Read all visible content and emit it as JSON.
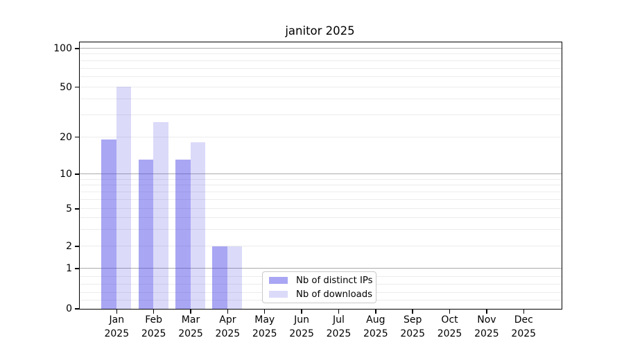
{
  "chart_data": {
    "type": "bar",
    "title": "janitor 2025",
    "categories": [
      "Jan 2025",
      "Feb 2025",
      "Mar 2025",
      "Apr 2025",
      "May 2025",
      "Jun 2025",
      "Jul 2025",
      "Aug 2025",
      "Sep 2025",
      "Oct 2025",
      "Nov 2025",
      "Dec 2025"
    ],
    "series": [
      {
        "name": "Nb of distinct IPs",
        "color": "#a9a7f3",
        "bar_fill": "rgba(64,57,228,0.45)",
        "values": [
          19,
          13,
          13,
          2,
          0,
          0,
          0,
          0,
          0,
          0,
          0,
          0
        ]
      },
      {
        "name": "Nb of downloads",
        "color": "#dbdaf9",
        "bar_fill": "rgba(75,70,225,0.2)",
        "values": [
          50,
          26,
          18,
          2,
          0,
          0,
          0,
          0,
          0,
          0,
          0,
          0
        ]
      }
    ],
    "xlabel": "",
    "ylabel": "",
    "yscale": "log",
    "ylim": [
      0,
      112
    ],
    "yticks": [
      0,
      1,
      2,
      5,
      10,
      20,
      50,
      100
    ],
    "major_grid_values": [
      1,
      10,
      100
    ],
    "minor_grid_values": [
      0.2,
      0.4,
      0.6,
      0.8,
      2,
      3,
      4,
      5,
      6,
      7,
      8,
      9,
      20,
      30,
      40,
      50,
      60,
      70,
      80,
      90
    ],
    "grid": true,
    "legend_position": "lower center",
    "style": {
      "major_grid_color": "#ababab",
      "minor_grid_color": "#ececec",
      "axis_color": "#000000",
      "text_color": "#000000",
      "background": "#ffffff"
    }
  }
}
